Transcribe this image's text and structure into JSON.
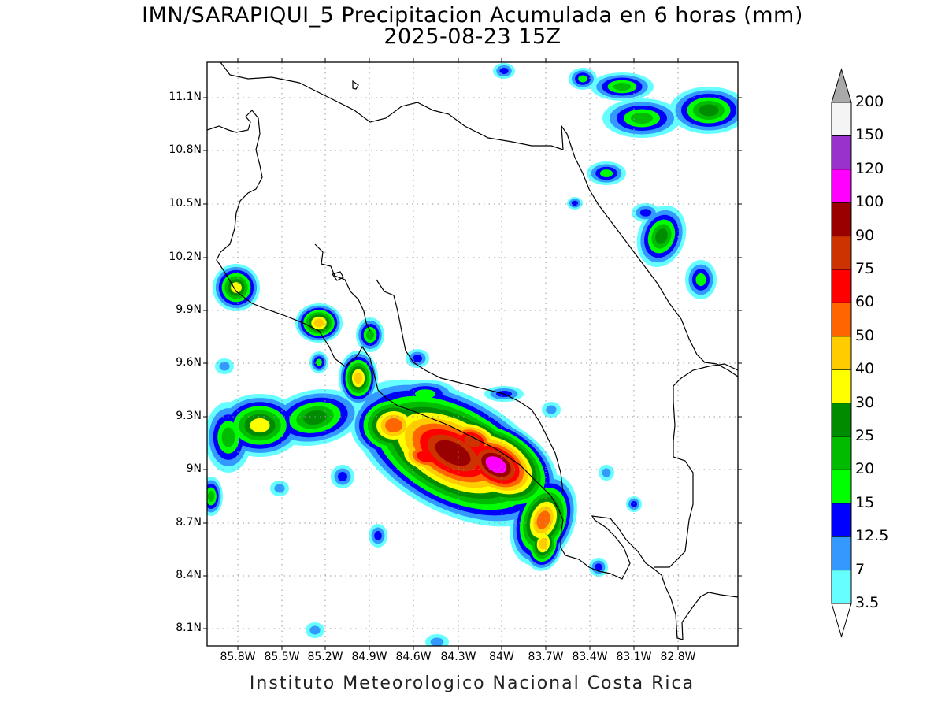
{
  "title": "IMN/SARAPIQUI_5 Precipitacion Acumulada en 6 horas (mm)",
  "subtitle": "2025-08-23 15Z",
  "footer": "Instituto Meteorologico Nacional Costa Rica",
  "lat_ticks": [
    "11.1N",
    "10.8N",
    "10.5N",
    "10.2N",
    "9.9N",
    "9.6N",
    "9.3N",
    "9N",
    "8.7N",
    "8.4N",
    "8.1N"
  ],
  "lon_ticks": [
    "85.8W",
    "85.5W",
    "85.2W",
    "84.9W",
    "84.6W",
    "84.3W",
    "84W",
    "83.7W",
    "83.4W",
    "83.1W",
    "82.8W"
  ],
  "legend": {
    "labels": [
      "200",
      "150",
      "120",
      "100",
      "90",
      "75",
      "60",
      "50",
      "40",
      "30",
      "25",
      "20",
      "15",
      "12.5",
      "7",
      "3.5"
    ],
    "colors": [
      "#a9a9a9",
      "#f4f4f4",
      "#9932cc",
      "#ff00ff",
      "#990000",
      "#cc3300",
      "#ff0000",
      "#ff6600",
      "#ffcc00",
      "#ffff00",
      "#008c00",
      "#00bb00",
      "#00ff00",
      "#0000ff",
      "#3399ff",
      "#66ffff"
    ]
  },
  "map": {
    "grid": true,
    "colors": {
      "frame": "#000000",
      "grid": "#999999",
      "coast": "#000000"
    }
  }
}
